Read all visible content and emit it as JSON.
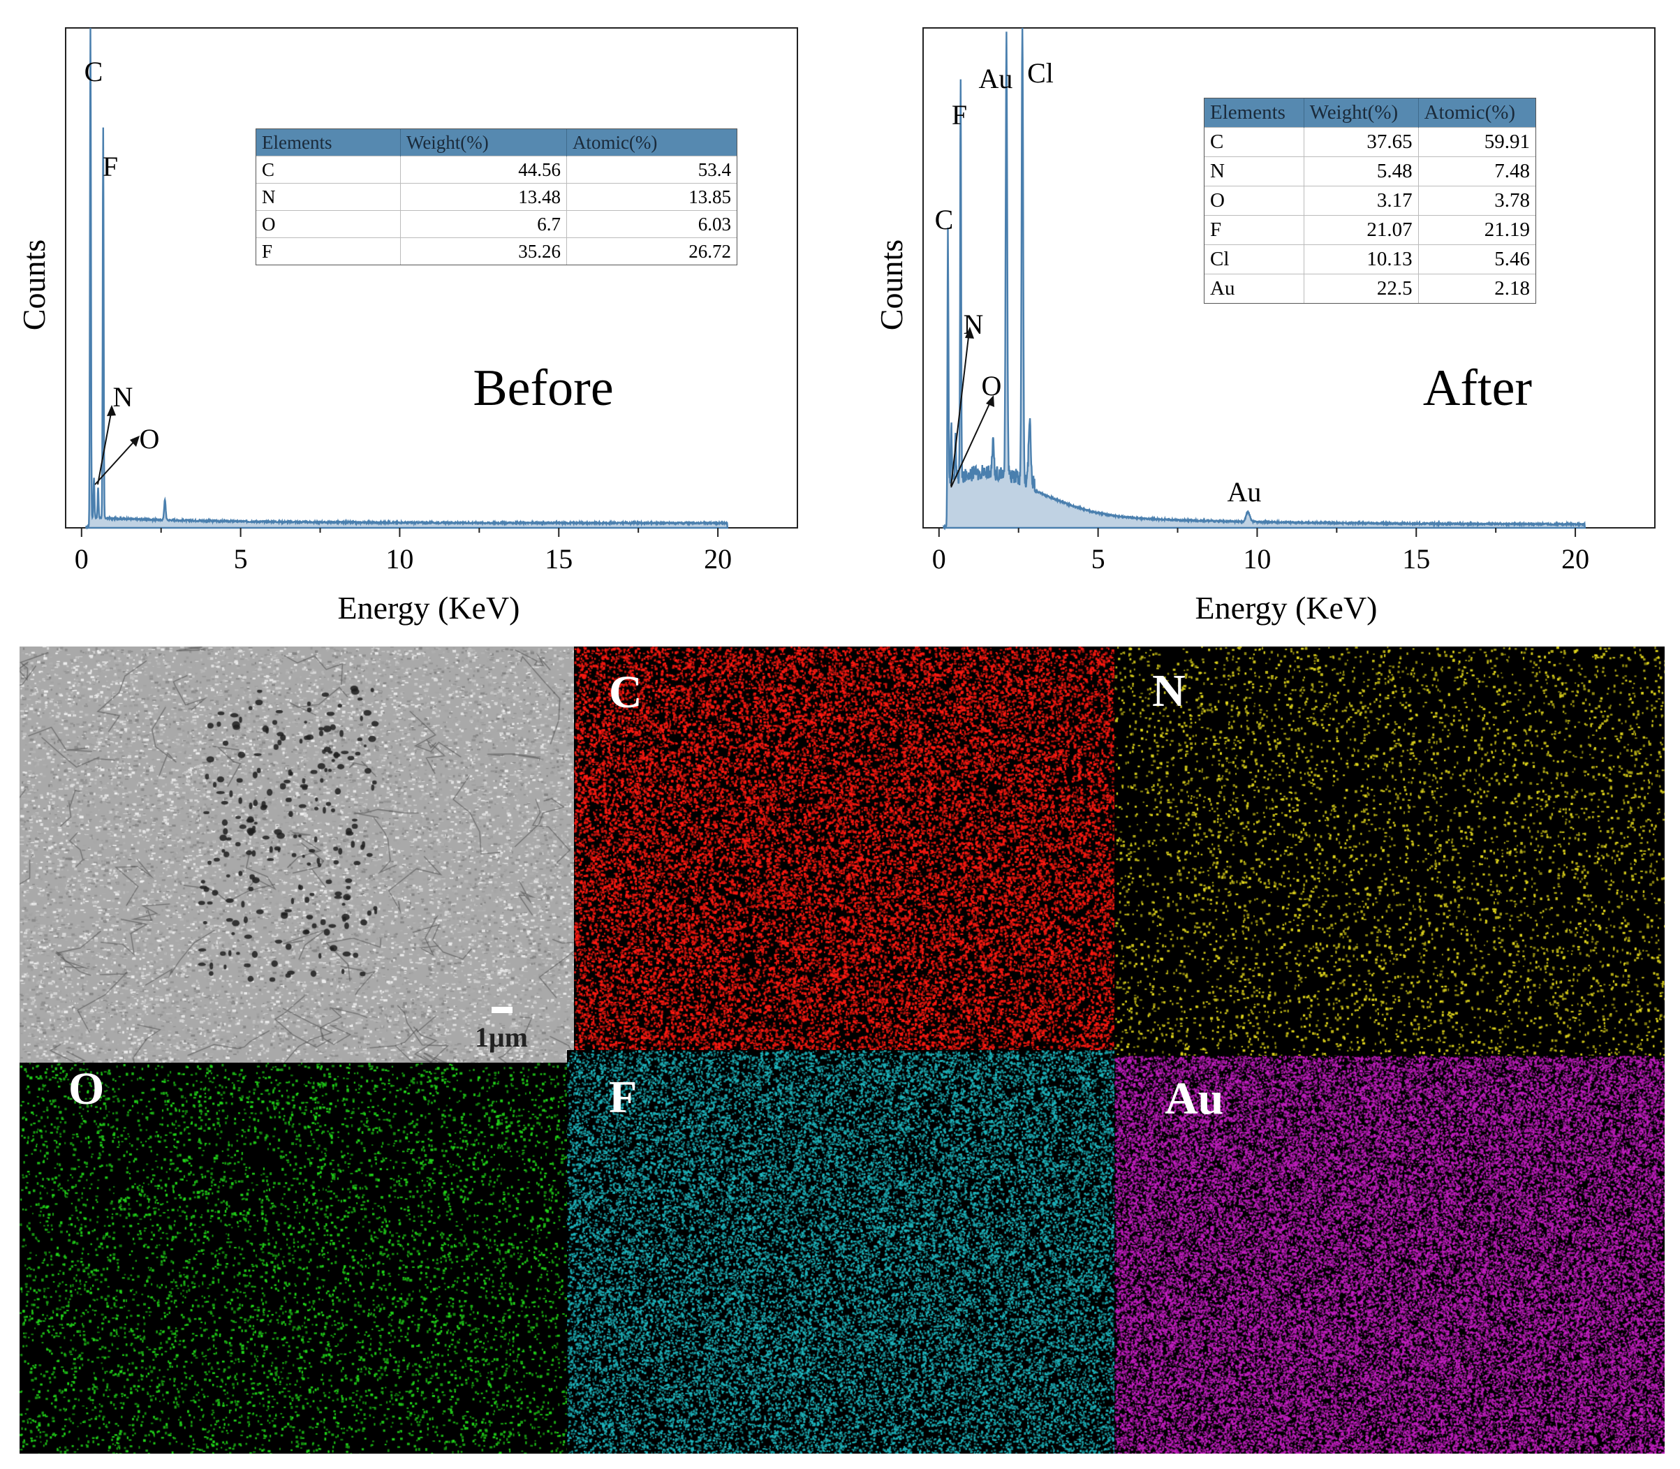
{
  "chart_data": [
    {
      "type": "line",
      "annotation": "Before",
      "xlabel": "Energy (KeV)",
      "ylabel": "Counts",
      "xlim": [
        -0.5,
        22.5
      ],
      "xticks": [
        "0",
        "5",
        "10",
        "15",
        "20"
      ],
      "series_color": "#4a7fae",
      "peaks": [
        {
          "label": "C",
          "x": 0.28,
          "y": 1.0
        },
        {
          "label": "F",
          "x": 0.68,
          "y": 0.78
        },
        {
          "label": "N",
          "x": 0.39,
          "y": 0.08
        },
        {
          "label": "O",
          "x": 0.52,
          "y": 0.06
        },
        {
          "label": "",
          "x": 2.62,
          "y": 0.04
        }
      ],
      "table": {
        "headers": [
          "Elements",
          "Weight(%)",
          "Atomic(%)"
        ],
        "rows": [
          [
            "C",
            "44.56",
            "53.4"
          ],
          [
            "N",
            "13.48",
            "13.85"
          ],
          [
            "O",
            "6.7",
            "6.03"
          ],
          [
            "F",
            "35.26",
            "26.72"
          ]
        ]
      }
    },
    {
      "type": "line",
      "annotation": "After",
      "xlabel": "Energy (KeV)",
      "ylabel": "Counts",
      "xlim": [
        -0.5,
        22.5
      ],
      "xticks": [
        "0",
        "5",
        "10",
        "15",
        "20"
      ],
      "series_color": "#4a7fae",
      "peaks": [
        {
          "label": "C",
          "x": 0.28,
          "y": 0.6
        },
        {
          "label": "F",
          "x": 0.68,
          "y": 0.8
        },
        {
          "label": "N",
          "x": 0.39,
          "y": 0.1
        },
        {
          "label": "O",
          "x": 0.52,
          "y": 0.08
        },
        {
          "label": "Au",
          "x": 2.12,
          "y": 0.87
        },
        {
          "label": "Cl",
          "x": 2.62,
          "y": 0.91
        },
        {
          "label": "Au",
          "x": 9.71,
          "y": 0.02
        }
      ],
      "table": {
        "headers": [
          "Elements",
          "Weight(%)",
          "Atomic(%)"
        ],
        "rows": [
          [
            "C",
            "37.65",
            "59.91"
          ],
          [
            "N",
            "5.48",
            "7.48"
          ],
          [
            "O",
            "3.17",
            "3.78"
          ],
          [
            "F",
            "21.07",
            "21.19"
          ],
          [
            "Cl",
            "10.13",
            "5.46"
          ],
          [
            "Au",
            "22.5",
            "2.18"
          ]
        ]
      }
    }
  ],
  "maps": [
    {
      "label": "",
      "kind": "sem",
      "color": "#cfcfcf",
      "scale_label": "1μm"
    },
    {
      "label": "C",
      "kind": "map",
      "color": "#ff1a12"
    },
    {
      "label": "N",
      "kind": "map",
      "color": "#e3d81c"
    },
    {
      "label": "O",
      "kind": "map",
      "color": "#22d81a"
    },
    {
      "label": "F",
      "kind": "map",
      "color": "#1fb7bf"
    },
    {
      "label": "Au",
      "kind": "map",
      "color": "#c41fc2"
    }
  ]
}
